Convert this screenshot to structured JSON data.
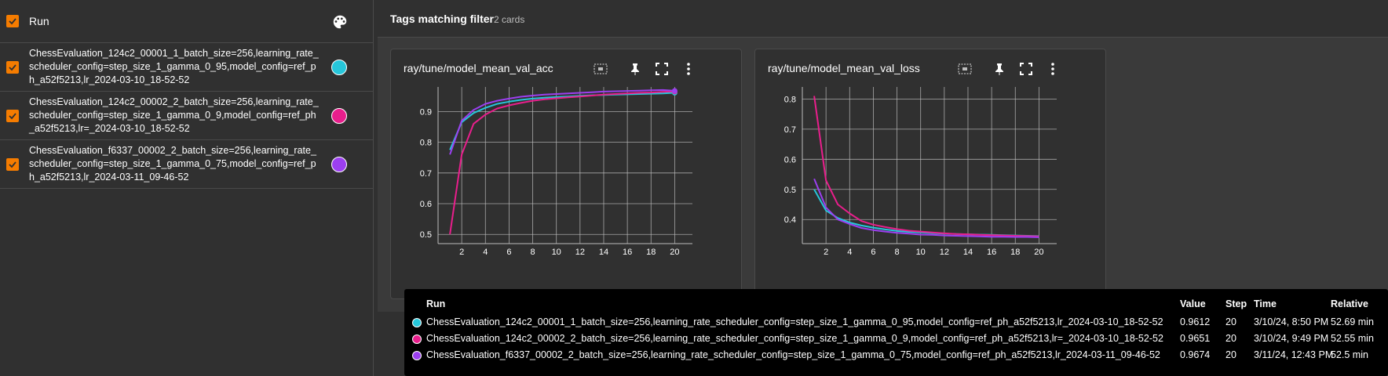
{
  "runs_panel": {
    "header_label": "Run",
    "palette_icon": "palette-icon",
    "runs": [
      {
        "name": "ChessEvaluation_124c2_00001_1_batch_size=256,learning_rate_scheduler_config=step_size_1_gamma_0_95,model_config=ref_ph_a52f5213,lr_2024-03-10_18-52-52",
        "color": "#26c6da",
        "checked": true
      },
      {
        "name": "ChessEvaluation_124c2_00002_2_batch_size=256,learning_rate_scheduler_config=step_size_1_gamma_0_9,model_config=ref_ph_a52f5213,lr=_2024-03-10_18-52-52",
        "color": "#e91e8c",
        "checked": true
      },
      {
        "name": "ChessEvaluation_f6337_00002_2_batch_size=256,learning_rate_scheduler_config=step_size_1_gamma_0_75,model_config=ref_ph_a52f5213,lr_2024-03-11_09-46-52",
        "color": "#9c3ff0",
        "checked": true
      }
    ]
  },
  "group": {
    "title": "Tags matching filter",
    "count": "2 cards"
  },
  "card_tools": [
    "fit-domain-icon",
    "pin-icon",
    "fullscreen-icon",
    "more-vert-icon"
  ],
  "colors": {
    "accent": "#f57c00",
    "grid": "#bdbdbd",
    "axis_text": "#ffffff"
  },
  "chart_data": [
    {
      "type": "line",
      "title": "ray/tune/model_mean_val_acc",
      "xlabel": "",
      "ylabel": "",
      "xlim": [
        0,
        21.5
      ],
      "ylim": [
        0.47,
        0.98
      ],
      "x_ticks": [
        2,
        4,
        6,
        8,
        10,
        12,
        14,
        16,
        18,
        20
      ],
      "y_ticks": [
        0.5,
        0.6,
        0.7,
        0.8,
        0.9
      ],
      "x_tick_labels": [
        "2",
        "4",
        "6",
        "8",
        "10",
        "12",
        "14",
        "16",
        "18",
        "20"
      ],
      "y_tick_labels": [
        "0.5",
        "0.6",
        "0.7",
        "0.8",
        "0.9"
      ],
      "grid": true,
      "x": [
        1,
        2,
        3,
        4,
        5,
        6,
        7,
        8,
        9,
        10,
        11,
        12,
        13,
        14,
        15,
        16,
        17,
        18,
        19,
        20
      ],
      "series": [
        {
          "color": "#26c6da",
          "values": [
            0.775,
            0.865,
            0.895,
            0.912,
            0.925,
            0.932,
            0.938,
            0.942,
            0.945,
            0.947,
            0.949,
            0.951,
            0.953,
            0.954,
            0.955,
            0.956,
            0.957,
            0.958,
            0.959,
            0.9612
          ]
        },
        {
          "color": "#e91e8c",
          "values": [
            0.5,
            0.76,
            0.86,
            0.89,
            0.91,
            0.92,
            0.928,
            0.935,
            0.94,
            0.943,
            0.946,
            0.949,
            0.952,
            0.955,
            0.957,
            0.959,
            0.961,
            0.962,
            0.964,
            0.9651
          ]
        },
        {
          "color": "#9c3ff0",
          "values": [
            0.76,
            0.87,
            0.905,
            0.925,
            0.935,
            0.942,
            0.948,
            0.952,
            0.955,
            0.957,
            0.959,
            0.961,
            0.963,
            0.965,
            0.966,
            0.967,
            0.968,
            0.969,
            0.97,
            0.9674
          ]
        }
      ]
    },
    {
      "type": "line",
      "title": "ray/tune/model_mean_val_loss",
      "xlabel": "",
      "ylabel": "",
      "xlim": [
        0,
        21.5
      ],
      "ylim": [
        0.32,
        0.84
      ],
      "x_ticks": [
        2,
        4,
        6,
        8,
        10,
        12,
        14,
        16,
        18,
        20
      ],
      "y_ticks": [
        0.4,
        0.5,
        0.6,
        0.7,
        0.8
      ],
      "x_tick_labels": [
        "2",
        "4",
        "6",
        "8",
        "10",
        "12",
        "14",
        "16",
        "18",
        "20"
      ],
      "y_tick_labels": [
        "0.4",
        "0.5",
        "0.6",
        "0.7",
        "0.8"
      ],
      "grid": true,
      "x": [
        1,
        2,
        3,
        4,
        5,
        6,
        7,
        8,
        9,
        10,
        11,
        12,
        13,
        14,
        15,
        16,
        17,
        18,
        19,
        20
      ],
      "series": [
        {
          "color": "#26c6da",
          "values": [
            0.5,
            0.43,
            0.405,
            0.39,
            0.38,
            0.373,
            0.367,
            0.362,
            0.359,
            0.357,
            0.355,
            0.353,
            0.352,
            0.351,
            0.35,
            0.349,
            0.348,
            0.347,
            0.346,
            0.345
          ]
        },
        {
          "color": "#e91e8c",
          "values": [
            0.81,
            0.53,
            0.45,
            0.42,
            0.395,
            0.383,
            0.375,
            0.368,
            0.363,
            0.36,
            0.357,
            0.354,
            0.352,
            0.351,
            0.349,
            0.348,
            0.347,
            0.346,
            0.345,
            0.344
          ]
        },
        {
          "color": "#9c3ff0",
          "values": [
            0.535,
            0.44,
            0.4,
            0.385,
            0.372,
            0.365,
            0.36,
            0.356,
            0.353,
            0.35,
            0.349,
            0.347,
            0.346,
            0.345,
            0.344,
            0.343,
            0.343,
            0.342,
            0.342,
            0.341
          ]
        }
      ]
    }
  ],
  "tooltip": {
    "headers": {
      "run": "Run",
      "value": "Value",
      "step": "Step",
      "time": "Time",
      "relative": "Relative"
    },
    "rows": [
      {
        "run": "ChessEvaluation_124c2_00001_1_batch_size=256,learning_rate_scheduler_config=step_size_1_gamma_0_95,model_config=ref_ph_a52f5213,lr_2024-03-10_18-52-52",
        "value": "0.9612",
        "step": "20",
        "time": "3/10/24, 8:50 PM",
        "relative": "52.69 min",
        "color": "#26c6da"
      },
      {
        "run": "ChessEvaluation_124c2_00002_2_batch_size=256,learning_rate_scheduler_config=step_size_1_gamma_0_9,model_config=ref_ph_a52f5213,lr=_2024-03-10_18-52-52",
        "value": "0.9651",
        "step": "20",
        "time": "3/10/24, 9:49 PM",
        "relative": "52.55 min",
        "color": "#e91e8c"
      },
      {
        "run": "ChessEvaluation_f6337_00002_2_batch_size=256,learning_rate_scheduler_config=step_size_1_gamma_0_75,model_config=ref_ph_a52f5213,lr_2024-03-11_09-46-52",
        "value": "0.9674",
        "step": "20",
        "time": "3/11/24, 12:43 PM",
        "relative": "52.5 min",
        "color": "#9c3ff0"
      }
    ]
  }
}
